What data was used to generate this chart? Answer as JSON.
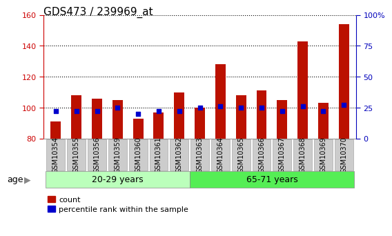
{
  "title": "GDS473 / 239969_at",
  "samples": [
    "GSM10354",
    "GSM10355",
    "GSM10356",
    "GSM10359",
    "GSM10360",
    "GSM10361",
    "GSM10362",
    "GSM10363",
    "GSM10364",
    "GSM10365",
    "GSM10366",
    "GSM10367",
    "GSM10368",
    "GSM10369",
    "GSM10370"
  ],
  "count_values": [
    91,
    108,
    106,
    105,
    93,
    97,
    110,
    100,
    128,
    108,
    111,
    105,
    143,
    103,
    154
  ],
  "percentile_values": [
    22,
    22,
    22,
    25,
    20,
    22,
    22,
    25,
    26,
    25,
    25,
    22,
    26,
    22,
    27
  ],
  "group1_label": "20-29 years",
  "group1_count": 7,
  "group2_label": "65-71 years",
  "group2_count": 8,
  "age_label": "age",
  "ylim_left": [
    80,
    160
  ],
  "ylim_right": [
    0,
    100
  ],
  "yticks_left": [
    80,
    100,
    120,
    140,
    160
  ],
  "yticks_right": [
    0,
    25,
    50,
    75,
    100
  ],
  "bar_color": "#BB1100",
  "dot_color": "#0000CC",
  "group1_bg": "#BBFFBB",
  "group2_bg": "#55EE55",
  "xticklabel_bg": "#CCCCCC",
  "legend_count_label": "count",
  "legend_pct_label": "percentile rank within the sample",
  "bar_width": 0.5,
  "bar_bottom": 80,
  "left_axis_color": "#CC0000",
  "right_axis_color": "#0000BB",
  "title_fontsize": 11,
  "tick_fontsize": 7,
  "label_fontsize": 9,
  "right_ytick_labels": [
    "0",
    "25",
    "50",
    "75",
    "100%"
  ]
}
